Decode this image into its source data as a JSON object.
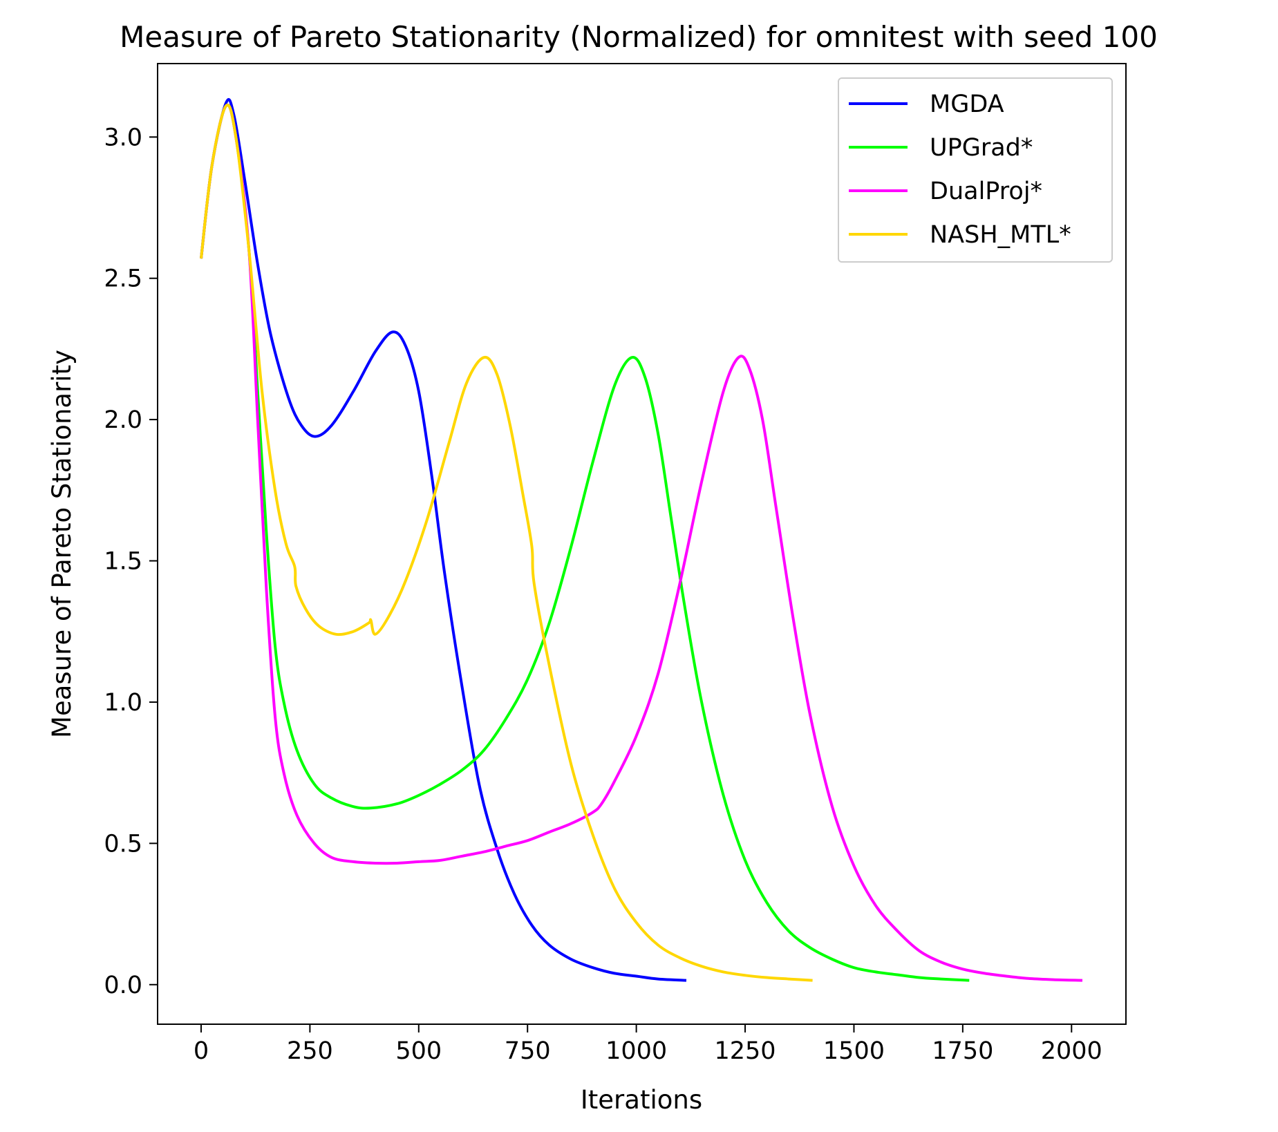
{
  "chart_data": {
    "type": "line",
    "title": "Measure of Pareto Stationarity (Normalized) for omnitest with seed 100",
    "xlabel": "Iterations",
    "ylabel": "Measure of Pareto Stationarity",
    "xlim": [
      -100,
      2125
    ],
    "ylim": [
      -0.14,
      3.26
    ],
    "xticks": [
      0,
      250,
      500,
      750,
      1000,
      1250,
      1500,
      1750,
      2000
    ],
    "xtick_labels": [
      "0",
      "250",
      "500",
      "750",
      "1000",
      "1250",
      "1500",
      "1750",
      "2000"
    ],
    "yticks": [
      0.0,
      0.5,
      1.0,
      1.5,
      2.0,
      2.5,
      3.0
    ],
    "ytick_labels": [
      "0.0",
      "0.5",
      "1.0",
      "1.5",
      "2.0",
      "2.5",
      "3.0"
    ],
    "grid": false,
    "legend_position": "top-right",
    "series": [
      {
        "name": "MGDA",
        "color": "#0000ff",
        "points": [
          [
            0,
            2.57
          ],
          [
            25,
            2.9
          ],
          [
            57,
            3.12
          ],
          [
            75,
            3.08
          ],
          [
            100,
            2.85
          ],
          [
            130,
            2.55
          ],
          [
            160,
            2.3
          ],
          [
            200,
            2.08
          ],
          [
            230,
            1.98
          ],
          [
            262,
            1.94
          ],
          [
            300,
            1.98
          ],
          [
            350,
            2.1
          ],
          [
            400,
            2.24
          ],
          [
            440,
            2.31
          ],
          [
            470,
            2.26
          ],
          [
            500,
            2.1
          ],
          [
            530,
            1.8
          ],
          [
            560,
            1.45
          ],
          [
            600,
            1.05
          ],
          [
            640,
            0.7
          ],
          [
            680,
            0.48
          ],
          [
            720,
            0.32
          ],
          [
            760,
            0.21
          ],
          [
            800,
            0.14
          ],
          [
            850,
            0.09
          ],
          [
            900,
            0.06
          ],
          [
            950,
            0.04
          ],
          [
            1000,
            0.03
          ],
          [
            1050,
            0.02
          ],
          [
            1115,
            0.015
          ]
        ]
      },
      {
        "name": "UPGrad*",
        "color": "#00ff00",
        "points": [
          [
            0,
            2.57
          ],
          [
            25,
            2.9
          ],
          [
            57,
            3.11
          ],
          [
            80,
            3.0
          ],
          [
            110,
            2.6
          ],
          [
            130,
            2.1
          ],
          [
            150,
            1.6
          ],
          [
            170,
            1.2
          ],
          [
            190,
            1.0
          ],
          [
            220,
            0.83
          ],
          [
            260,
            0.71
          ],
          [
            300,
            0.66
          ],
          [
            350,
            0.63
          ],
          [
            390,
            0.625
          ],
          [
            450,
            0.64
          ],
          [
            500,
            0.67
          ],
          [
            550,
            0.71
          ],
          [
            600,
            0.76
          ],
          [
            650,
            0.83
          ],
          [
            700,
            0.94
          ],
          [
            750,
            1.08
          ],
          [
            800,
            1.28
          ],
          [
            850,
            1.55
          ],
          [
            900,
            1.85
          ],
          [
            950,
            2.12
          ],
          [
            990,
            2.22
          ],
          [
            1020,
            2.15
          ],
          [
            1050,
            1.95
          ],
          [
            1080,
            1.65
          ],
          [
            1110,
            1.35
          ],
          [
            1150,
            1.0
          ],
          [
            1200,
            0.67
          ],
          [
            1250,
            0.44
          ],
          [
            1300,
            0.29
          ],
          [
            1350,
            0.19
          ],
          [
            1400,
            0.13
          ],
          [
            1450,
            0.09
          ],
          [
            1500,
            0.06
          ],
          [
            1550,
            0.045
          ],
          [
            1600,
            0.035
          ],
          [
            1650,
            0.025
          ],
          [
            1700,
            0.02
          ],
          [
            1765,
            0.015
          ]
        ]
      },
      {
        "name": "DualProj*",
        "color": "#ff00ff",
        "points": [
          [
            0,
            2.57
          ],
          [
            25,
            2.9
          ],
          [
            57,
            3.11
          ],
          [
            80,
            3.0
          ],
          [
            110,
            2.6
          ],
          [
            130,
            2.0
          ],
          [
            150,
            1.4
          ],
          [
            170,
            0.95
          ],
          [
            190,
            0.75
          ],
          [
            220,
            0.6
          ],
          [
            260,
            0.5
          ],
          [
            300,
            0.45
          ],
          [
            350,
            0.435
          ],
          [
            400,
            0.43
          ],
          [
            450,
            0.43
          ],
          [
            500,
            0.435
          ],
          [
            550,
            0.44
          ],
          [
            600,
            0.455
          ],
          [
            650,
            0.47
          ],
          [
            700,
            0.49
          ],
          [
            750,
            0.51
          ],
          [
            800,
            0.54
          ],
          [
            850,
            0.57
          ],
          [
            900,
            0.61
          ],
          [
            920,
            0.64
          ],
          [
            950,
            0.72
          ],
          [
            1000,
            0.88
          ],
          [
            1050,
            1.1
          ],
          [
            1100,
            1.42
          ],
          [
            1150,
            1.78
          ],
          [
            1200,
            2.1
          ],
          [
            1235,
            2.22
          ],
          [
            1260,
            2.18
          ],
          [
            1290,
            2.0
          ],
          [
            1320,
            1.7
          ],
          [
            1360,
            1.3
          ],
          [
            1400,
            0.95
          ],
          [
            1450,
            0.63
          ],
          [
            1500,
            0.42
          ],
          [
            1550,
            0.28
          ],
          [
            1600,
            0.19
          ],
          [
            1650,
            0.12
          ],
          [
            1700,
            0.08
          ],
          [
            1750,
            0.055
          ],
          [
            1800,
            0.04
          ],
          [
            1850,
            0.03
          ],
          [
            1900,
            0.022
          ],
          [
            1950,
            0.018
          ],
          [
            2025,
            0.015
          ]
        ]
      },
      {
        "name": "NASH_MTL*",
        "color": "#ffd700",
        "points": [
          [
            0,
            2.57
          ],
          [
            25,
            2.9
          ],
          [
            57,
            3.11
          ],
          [
            80,
            3.0
          ],
          [
            110,
            2.6
          ],
          [
            140,
            2.1
          ],
          [
            170,
            1.75
          ],
          [
            195,
            1.56
          ],
          [
            215,
            1.48
          ],
          [
            218,
            1.41
          ],
          [
            240,
            1.33
          ],
          [
            270,
            1.27
          ],
          [
            310,
            1.24
          ],
          [
            350,
            1.25
          ],
          [
            385,
            1.28
          ],
          [
            390,
            1.29
          ],
          [
            400,
            1.24
          ],
          [
            430,
            1.3
          ],
          [
            470,
            1.43
          ],
          [
            520,
            1.65
          ],
          [
            570,
            1.92
          ],
          [
            610,
            2.13
          ],
          [
            650,
            2.22
          ],
          [
            680,
            2.16
          ],
          [
            710,
            1.98
          ],
          [
            740,
            1.73
          ],
          [
            760,
            1.55
          ],
          [
            765,
            1.42
          ],
          [
            800,
            1.13
          ],
          [
            850,
            0.78
          ],
          [
            900,
            0.53
          ],
          [
            950,
            0.34
          ],
          [
            1000,
            0.22
          ],
          [
            1050,
            0.14
          ],
          [
            1100,
            0.095
          ],
          [
            1150,
            0.065
          ],
          [
            1200,
            0.045
          ],
          [
            1250,
            0.033
          ],
          [
            1300,
            0.025
          ],
          [
            1350,
            0.02
          ],
          [
            1405,
            0.015
          ]
        ]
      }
    ]
  }
}
